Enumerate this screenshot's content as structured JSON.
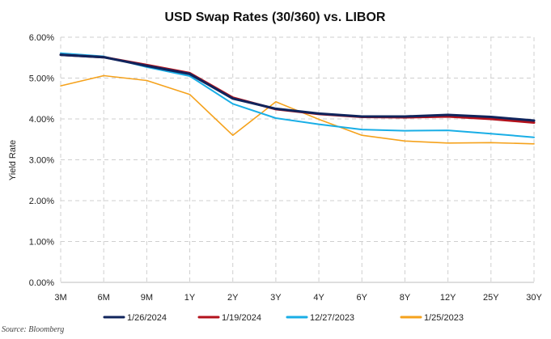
{
  "chart_data": {
    "type": "line",
    "title": "USD Swap Rates (30/360) vs. LIBOR",
    "xlabel": "",
    "ylabel": "Yield Rate",
    "categories": [
      "3M",
      "6M",
      "9M",
      "1Y",
      "2Y",
      "3Y",
      "4Y",
      "6Y",
      "8Y",
      "12Y",
      "25Y",
      "30Y"
    ],
    "ylim": [
      0,
      6
    ],
    "yticks": [
      "0.00%",
      "1.00%",
      "2.00%",
      "3.00%",
      "4.00%",
      "5.00%",
      "6.00%"
    ],
    "grid": true,
    "legend_position": "bottom",
    "series": [
      {
        "name": "1/26/2024",
        "color": "#10245c",
        "width": 3.0,
        "values": [
          5.57,
          5.51,
          5.3,
          5.1,
          4.5,
          4.25,
          4.13,
          4.06,
          4.06,
          4.1,
          4.05,
          3.96
        ]
      },
      {
        "name": "1/19/2024",
        "color": "#b3121c",
        "width": 3.0,
        "values": [
          5.57,
          5.51,
          5.32,
          5.12,
          4.52,
          4.24,
          4.12,
          4.05,
          4.04,
          4.06,
          4.0,
          3.91
        ]
      },
      {
        "name": "12/27/2023",
        "color": "#19aee6",
        "width": 2.0,
        "values": [
          5.61,
          5.53,
          5.27,
          5.05,
          4.37,
          4.02,
          3.87,
          3.74,
          3.71,
          3.72,
          3.64,
          3.55
        ]
      },
      {
        "name": "1/25/2023",
        "color": "#f5a21c",
        "width": 1.6,
        "values": [
          4.81,
          5.06,
          4.94,
          4.6,
          3.6,
          4.42,
          3.99,
          3.6,
          3.46,
          3.41,
          3.42,
          3.39
        ]
      }
    ]
  },
  "source": "Source: Bloomberg"
}
